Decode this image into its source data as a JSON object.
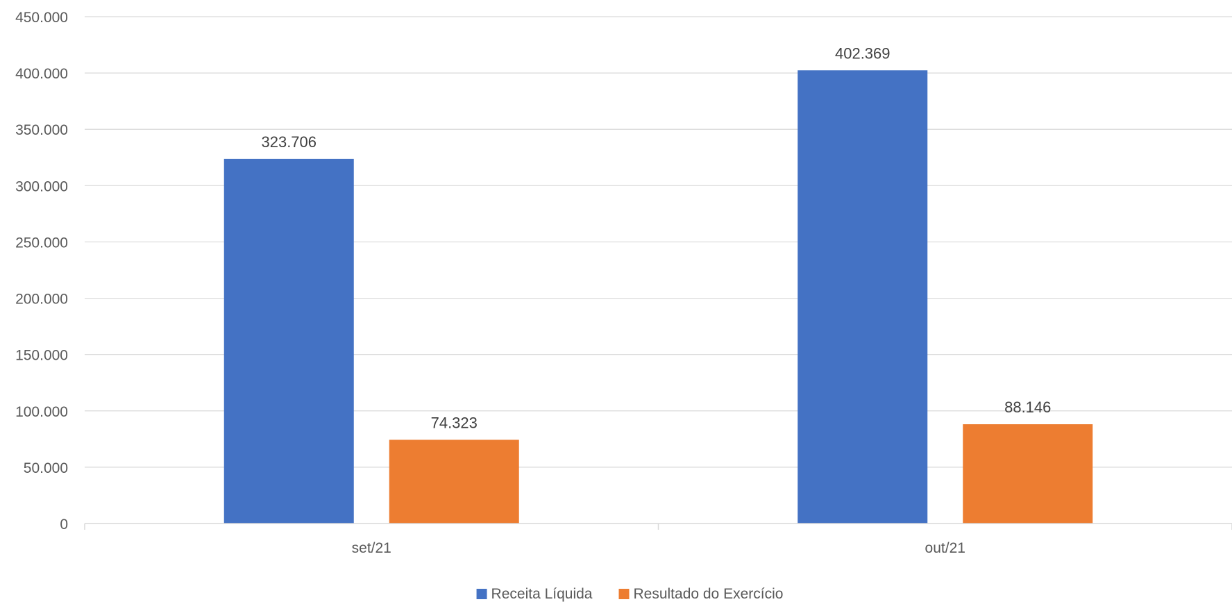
{
  "chart_data": {
    "type": "bar",
    "title": "",
    "xlabel": "",
    "ylabel": "",
    "categories": [
      "set/21",
      "out/21"
    ],
    "series": [
      {
        "name": "Receita Líquida",
        "color": "#4472C4",
        "values": [
          323706,
          402369
        ],
        "labels": [
          "323.706",
          "402.369"
        ]
      },
      {
        "name": "Resultado do Exercício",
        "color": "#ED7D31",
        "values": [
          74323,
          88146
        ],
        "labels": [
          "74.323",
          "88.146"
        ]
      }
    ],
    "ylim": [
      0,
      450000
    ],
    "yticks": [
      0,
      50000,
      100000,
      150000,
      200000,
      250000,
      300000,
      350000,
      400000,
      450000
    ],
    "ytick_labels": [
      "0",
      "50.000",
      "100.000",
      "150.000",
      "200.000",
      "250.000",
      "300.000",
      "350.000",
      "400.000",
      "450.000"
    ],
    "grid": true,
    "legend_position": "bottom",
    "colors": {
      "grid": "#D9D9D9",
      "axis": "#D9D9D9",
      "text": "#595959",
      "data_label": "#404040"
    }
  }
}
